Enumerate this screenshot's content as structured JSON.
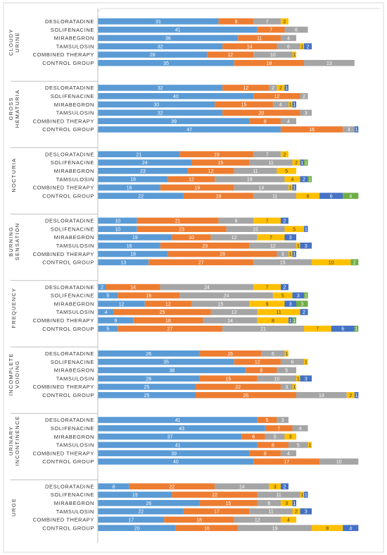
{
  "chart_data": {
    "type": "bar",
    "orientation": "horizontal",
    "stacked": true,
    "series_colors": [
      "#5b9bd5",
      "#ed7d31",
      "#a5a5a5",
      "#ffc000",
      "#4472c4",
      "#70ad47"
    ],
    "groups": [
      {
        "label": "CLOUDY URINE",
        "rows": [
          {
            "label": "DESLORATADINE",
            "values": [
              31,
              9,
              7,
              2,
              0,
              0
            ]
          },
          {
            "label": "SOLIFENACINE",
            "values": [
              41,
              7,
              6,
              0,
              0,
              0
            ]
          },
          {
            "label": "MIRABEGRON",
            "values": [
              36,
              11,
              4,
              0,
              0,
              0
            ]
          },
          {
            "label": "TAMSULOSIN",
            "values": [
              32,
              14,
              6,
              1,
              2,
              0
            ]
          },
          {
            "label": "COMBINED THERAPY",
            "values": [
              28,
              12,
              10,
              1,
              0,
              0
            ]
          },
          {
            "label": "CONTROL GROUP",
            "values": [
              35,
              18,
              13,
              0,
              0,
              0
            ]
          }
        ]
      },
      {
        "label": "GROSS HEMATURIA",
        "rows": [
          {
            "label": "DESLORATADINE",
            "values": [
              32,
              12,
              2,
              2,
              1,
              0
            ]
          },
          {
            "label": "SOLIFENACINE",
            "values": [
              40,
              12,
              2,
              0,
              0,
              0
            ]
          },
          {
            "label": "MIRABEGRON",
            "values": [
              30,
              15,
              4,
              1,
              1,
              0
            ]
          },
          {
            "label": "TAMSULOSIN",
            "values": [
              32,
              20,
              3,
              0,
              0,
              0
            ]
          },
          {
            "label": "COMBINED THERAPY",
            "values": [
              39,
              8,
              4,
              0,
              0,
              0
            ]
          },
          {
            "label": "CONTROL GROUP",
            "values": [
              47,
              16,
              3,
              0,
              1,
              0
            ]
          }
        ]
      },
      {
        "label": "NOCTURIA",
        "rows": [
          {
            "label": "DESLORATADINE",
            "values": [
              21,
              19,
              7,
              2,
              0,
              0
            ]
          },
          {
            "label": "SOLIFENACINE",
            "values": [
              24,
              15,
              11,
              2,
              1,
              1
            ]
          },
          {
            "label": "MIRABEGRON",
            "values": [
              23,
              12,
              11,
              5,
              0,
              0
            ]
          },
          {
            "label": "TAMSULOSIN",
            "values": [
              18,
              12,
              18,
              4,
              2,
              1
            ]
          },
          {
            "label": "COMBINED THERAPY",
            "values": [
              16,
              19,
              14,
              1,
              1,
              0
            ]
          },
          {
            "label": "CONTROL GROUP",
            "values": [
              22,
              18,
              11,
              6,
              6,
              4
            ]
          }
        ]
      },
      {
        "label": "BURNING SENSATION",
        "rows": [
          {
            "label": "DESLORATADINE",
            "values": [
              10,
              21,
              9,
              7,
              2,
              0
            ]
          },
          {
            "label": "SOLIFENACINE",
            "values": [
              10,
              23,
              15,
              5,
              1,
              0
            ]
          },
          {
            "label": "MIRABEGRON",
            "values": [
              19,
              10,
              12,
              7,
              3,
              0
            ]
          },
          {
            "label": "TAMSULOSIN",
            "values": [
              16,
              23,
              12,
              1,
              3,
              0
            ]
          },
          {
            "label": "COMBINED THERAPY",
            "values": [
              18,
              28,
              3,
              1,
              1,
              0
            ]
          },
          {
            "label": "CONTROL GROUP",
            "values": [
              13,
              27,
              15,
              10,
              0,
              2
            ]
          }
        ]
      },
      {
        "label": "FREQUENCY",
        "rows": [
          {
            "label": "DESLORATADINE",
            "values": [
              2,
              14,
              24,
              7,
              2,
              0
            ]
          },
          {
            "label": "SOLIFENACINE",
            "values": [
              5,
              16,
              24,
              5,
              3,
              1
            ]
          },
          {
            "label": "MIRABEGRON",
            "values": [
              12,
              12,
              15,
              9,
              3,
              3
            ]
          },
          {
            "label": "TAMSULOSIN",
            "values": [
              4,
              25,
              12,
              11,
              2,
              0
            ]
          },
          {
            "label": "COMBINED THERAPY",
            "values": [
              9,
              18,
              14,
              8,
              1,
              1
            ]
          },
          {
            "label": "CONTROL GROUP",
            "values": [
              5,
              27,
              21,
              7,
              6,
              1
            ]
          }
        ]
      },
      {
        "label": "INCOMPLETE VOIDING",
        "rows": [
          {
            "label": "DESLORATADINE",
            "values": [
              26,
              16,
              6,
              1,
              0,
              0
            ]
          },
          {
            "label": "SOLIFENACINE",
            "values": [
              35,
              12,
              6,
              1,
              0,
              0
            ]
          },
          {
            "label": "MIRABEGRON",
            "values": [
              38,
              8,
              5,
              0,
              0,
              0
            ]
          },
          {
            "label": "TAMSULOSIN",
            "values": [
              26,
              15,
              10,
              1,
              3,
              0
            ]
          },
          {
            "label": "COMBINED THERAPY",
            "values": [
              25,
              22,
              3,
              1,
              0,
              0
            ]
          },
          {
            "label": "CONTROL GROUP",
            "values": [
              25,
              26,
              13,
              2,
              1,
              0
            ]
          }
        ]
      },
      {
        "label": "URINARY INCONTINENCE",
        "rows": [
          {
            "label": "DESLORATADINE",
            "values": [
              41,
              5,
              3,
              0,
              0,
              0
            ]
          },
          {
            "label": "SOLIFENACINE",
            "values": [
              43,
              7,
              4,
              0,
              0,
              0
            ]
          },
          {
            "label": "MIRABEGRON",
            "values": [
              37,
              6,
              5,
              3,
              0,
              0
            ]
          },
          {
            "label": "TAMSULOSIN",
            "values": [
              41,
              8,
              5,
              1,
              0,
              0
            ]
          },
          {
            "label": "COMBINED THERAPY",
            "values": [
              39,
              8,
              4,
              0,
              0,
              0
            ]
          },
          {
            "label": "CONTROL GROUP",
            "values": [
              40,
              17,
              10,
              0,
              0,
              0
            ]
          }
        ]
      },
      {
        "label": "URGE",
        "rows": [
          {
            "label": "DESLORATADINE",
            "values": [
              8,
              22,
              14,
              3,
              2,
              0
            ]
          },
          {
            "label": "SOLIFENACINE",
            "values": [
              19,
              22,
              11,
              1,
              1,
              0
            ]
          },
          {
            "label": "MIRABEGRON",
            "values": [
              26,
              15,
              6,
              3,
              1,
              0
            ]
          },
          {
            "label": "TAMSULOSIN",
            "values": [
              22,
              17,
              11,
              2,
              3,
              0
            ]
          },
          {
            "label": "COMBINED THERAPY",
            "values": [
              17,
              18,
              12,
              4,
              0,
              0
            ]
          },
          {
            "label": "CONTROL GROUP",
            "values": [
              20,
              16,
              19,
              8,
              4,
              0
            ]
          }
        ]
      }
    ]
  }
}
